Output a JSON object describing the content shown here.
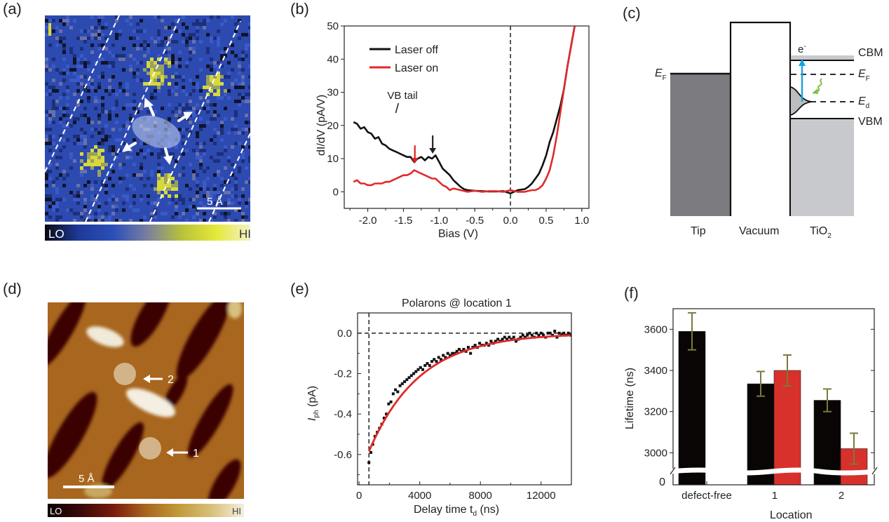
{
  "panels": {
    "a": {
      "label": "(a)",
      "scalebar": "5 Å",
      "colorbar": {
        "lo": "LO",
        "hi": "HI",
        "stops": [
          "#0a0a14",
          "#1e3a9a",
          "#2b4fb8",
          "#7a7fa0",
          "#b8c23a",
          "#e6e83a",
          "#f3f2c8"
        ]
      }
    },
    "b": {
      "label": "(b)"
    },
    "c": {
      "label": "(c)",
      "tip_label": "Tip",
      "vacuum_label": "Vacuum",
      "tio2_label": "TiO",
      "tio2_sub": "2",
      "ef_tip": "E",
      "ef_tip_sub": "F",
      "cbm": "CBM",
      "ef": "E",
      "ef_sub": "F",
      "ed": "E",
      "ed_sub": "d",
      "vbm": "VBM",
      "electron": "e",
      "electron_sup": "-",
      "colors": {
        "tip": "#7c7c80",
        "tio2": "#c8c9cc",
        "excitation_arrow": "#1aa3e0",
        "relaxation_arrow": "#7cc242"
      }
    },
    "d": {
      "label": "(d)",
      "scalebar": "5 Å",
      "marker_1": "1",
      "marker_2": "2",
      "colorbar": {
        "lo": "LO",
        "hi": "HI",
        "stops": [
          "#0a0000",
          "#3a0808",
          "#7a1a0c",
          "#a8661e",
          "#c29a3a",
          "#d8c07a",
          "#f4efe0"
        ]
      }
    },
    "e": {
      "label": "(e)"
    },
    "f": {
      "label": "(f)"
    }
  },
  "chart_data": [
    {
      "panel": "b",
      "type": "line",
      "title": "",
      "xlabel": "Bias (V)",
      "ylabel": "dI/dV (pA/V)",
      "xlim": [
        -2.33,
        1.1
      ],
      "ylim": [
        -5,
        50
      ],
      "xticks": [
        -2.0,
        -1.5,
        -1.0,
        -0.5,
        0.0,
        0.5,
        1.0
      ],
      "xtick_labels": [
        "-2.0",
        "-1.5",
        "-1.0",
        "-0.5",
        "0.0",
        "0.5",
        "1.0"
      ],
      "yticks": [
        0,
        10,
        20,
        30,
        40,
        50
      ],
      "ytick_labels": [
        "0",
        "10",
        "20",
        "30",
        "40",
        "50"
      ],
      "legend": {
        "placement": "top-left",
        "entries": [
          "Laser off",
          "Laser on"
        ]
      },
      "reference_lines": [
        {
          "axis": "x",
          "value": 0.0,
          "style": "dashed"
        }
      ],
      "annotations": [
        {
          "text": "VB tail",
          "x": -1.55,
          "y": 28
        },
        {
          "type": "arrow",
          "color": "#e02020",
          "x": -1.34,
          "y_from": 14,
          "y_to": 8.5
        },
        {
          "type": "arrow",
          "color": "#222222",
          "x": -1.09,
          "y_from": 17,
          "y_to": 11.5
        }
      ],
      "series": [
        {
          "name": "Laser off",
          "color": "#111111",
          "x": [
            -2.2,
            -2.15,
            -2.1,
            -2.05,
            -2.0,
            -1.95,
            -1.9,
            -1.85,
            -1.8,
            -1.75,
            -1.7,
            -1.65,
            -1.6,
            -1.55,
            -1.5,
            -1.45,
            -1.4,
            -1.35,
            -1.3,
            -1.25,
            -1.2,
            -1.15,
            -1.1,
            -1.05,
            -1.0,
            -0.95,
            -0.9,
            -0.85,
            -0.8,
            -0.75,
            -0.7,
            -0.65,
            -0.6,
            -0.5,
            -0.4,
            -0.3,
            -0.2,
            -0.1,
            0.0,
            0.1,
            0.2,
            0.25,
            0.3,
            0.35,
            0.4,
            0.45,
            0.5,
            0.55,
            0.6,
            0.65,
            0.7,
            0.75,
            0.8,
            0.85,
            0.9
          ],
          "y": [
            21,
            20.5,
            19,
            19.5,
            18,
            17.5,
            16,
            16.5,
            14.5,
            14,
            13,
            12.5,
            12,
            11.5,
            11,
            10.5,
            10.5,
            9,
            10,
            10.5,
            9.5,
            10.5,
            10,
            11,
            9,
            7,
            6,
            5,
            3.5,
            2.5,
            1.5,
            0.8,
            0.5,
            0.3,
            0.2,
            0.1,
            0.1,
            0.2,
            -0.5,
            0.5,
            0.8,
            1.5,
            2.5,
            4,
            5.5,
            8,
            11,
            15,
            18,
            22,
            26,
            31,
            38,
            44,
            50
          ]
        },
        {
          "name": "Laser on",
          "color": "#e02a2a",
          "x": [
            -2.2,
            -2.15,
            -2.1,
            -2.05,
            -2.0,
            -1.95,
            -1.9,
            -1.85,
            -1.8,
            -1.75,
            -1.7,
            -1.65,
            -1.6,
            -1.55,
            -1.5,
            -1.45,
            -1.4,
            -1.35,
            -1.3,
            -1.25,
            -1.2,
            -1.15,
            -1.1,
            -1.05,
            -1.0,
            -0.95,
            -0.9,
            -0.85,
            -0.8,
            -0.7,
            -0.6,
            -0.5,
            -0.4,
            -0.3,
            -0.2,
            -0.1,
            0.0,
            0.1,
            0.2,
            0.3,
            0.35,
            0.4,
            0.45,
            0.5,
            0.55,
            0.6,
            0.65,
            0.7,
            0.75,
            0.8,
            0.85,
            0.9
          ],
          "y": [
            3,
            3.5,
            2.5,
            2.5,
            2,
            2,
            2.5,
            2.5,
            2.5,
            3,
            3,
            3.5,
            4,
            4.5,
            5,
            5,
            5.5,
            6.5,
            6,
            5.5,
            5,
            4.5,
            4,
            4,
            3,
            2,
            1.5,
            0.5,
            1,
            0.5,
            0,
            0.3,
            0,
            0.2,
            0.2,
            0,
            0.5,
            0,
            0,
            0.5,
            0.5,
            1,
            2,
            4,
            6.5,
            11,
            17,
            24,
            31,
            38,
            44,
            50
          ]
        }
      ]
    },
    {
      "panel": "e",
      "type": "scatter",
      "title": "Polarons @ location 1",
      "xlabel": "Delay time t",
      "xlabel_sub": "d",
      "xlabel_unit": " (ns)",
      "ylabel": "I",
      "ylabel_sub": "ph",
      "ylabel_unit": " (pA)",
      "xlim": [
        -100,
        14000
      ],
      "ylim": [
        -0.75,
        0.1
      ],
      "xticks": [
        0,
        4000,
        8000,
        12000
      ],
      "xtick_labels": [
        "0",
        "4000",
        "8000",
        "12000"
      ],
      "yticks": [
        0.0,
        -0.2,
        -0.4,
        -0.6
      ],
      "ytick_labels": [
        "0.0",
        "-0.2",
        "-0.4",
        "-0.6"
      ],
      "reference_lines": [
        {
          "axis": "y",
          "value": 0.0,
          "style": "dashed"
        },
        {
          "axis": "x",
          "value": 650,
          "style": "dashed"
        }
      ],
      "fit": {
        "name": "exponential fit",
        "color": "#e02a2a",
        "t0": 650,
        "amplitude": -0.585,
        "tau_ns": 3330
      },
      "series": [
        {
          "name": "data",
          "color": "#111111",
          "x": [
            650,
            780,
            900,
            1050,
            1200,
            1350,
            1500,
            1650,
            1800,
            1950,
            2100,
            2250,
            2400,
            2550,
            2700,
            2850,
            3000,
            3150,
            3300,
            3450,
            3600,
            3750,
            3900,
            4050,
            4200,
            4350,
            4500,
            4650,
            4800,
            4950,
            5100,
            5250,
            5400,
            5550,
            5700,
            5850,
            6000,
            6150,
            6300,
            6450,
            6600,
            6750,
            6900,
            7050,
            7200,
            7350,
            7500,
            7650,
            7800,
            7950,
            8100,
            8250,
            8400,
            8550,
            8700,
            8850,
            9000,
            9150,
            9300,
            9450,
            9600,
            9750,
            9900,
            10050,
            10200,
            10350,
            10500,
            10650,
            10800,
            10950,
            11100,
            11250,
            11400,
            11550,
            11700,
            11850,
            12000,
            12150,
            12300,
            12450,
            12600,
            12750,
            12900,
            13050,
            13200,
            13350,
            13500,
            13650,
            13800,
            13950
          ],
          "y": [
            -0.64,
            -0.59,
            -0.55,
            -0.51,
            -0.49,
            -0.47,
            -0.45,
            -0.42,
            -0.4,
            -0.35,
            -0.34,
            -0.3,
            -0.28,
            -0.29,
            -0.26,
            -0.25,
            -0.24,
            -0.23,
            -0.22,
            -0.21,
            -0.2,
            -0.19,
            -0.18,
            -0.17,
            -0.18,
            -0.16,
            -0.15,
            -0.16,
            -0.14,
            -0.13,
            -0.14,
            -0.12,
            -0.13,
            -0.11,
            -0.12,
            -0.1,
            -0.11,
            -0.1,
            -0.1,
            -0.09,
            -0.08,
            -0.09,
            -0.08,
            -0.09,
            -0.07,
            -0.1,
            -0.07,
            -0.06,
            -0.07,
            -0.05,
            -0.06,
            -0.06,
            -0.05,
            -0.06,
            -0.04,
            -0.05,
            -0.04,
            -0.03,
            -0.04,
            -0.03,
            -0.02,
            -0.03,
            -0.02,
            -0.03,
            -0.02,
            -0.04,
            -0.03,
            -0.02,
            -0.01,
            -0.02,
            -0.01,
            0.0,
            -0.01,
            -0.02,
            0.0,
            -0.01,
            0.0,
            -0.01,
            -0.02,
            0.0,
            0.0,
            -0.01,
            0.01,
            -0.02,
            0.0,
            -0.01,
            0.0,
            -0.01,
            0.0,
            -0.01
          ]
        }
      ]
    },
    {
      "panel": "f",
      "type": "bar",
      "title": "",
      "xlabel": "Location",
      "ylabel": "Lifetime (ns)",
      "ylim": [
        2950,
        3700
      ],
      "axis_break": true,
      "break_low_tick": "0",
      "categories": [
        "defect-free",
        "1",
        "2"
      ],
      "yticks": [
        3000,
        3200,
        3400,
        3600
      ],
      "ytick_labels": [
        "3000",
        "3200",
        "3400",
        "3600"
      ],
      "errorbar_color": "#7a7a3a",
      "series": [
        {
          "name": "Laser off",
          "color": "#0a0505",
          "values": [
            3590,
            3335,
            3255
          ],
          "errors": [
            90,
            60,
            55
          ]
        },
        {
          "name": "Laser on",
          "color": "#d8302a",
          "values": [
            null,
            3400,
            3020
          ],
          "errors": [
            null,
            75,
            75
          ]
        }
      ]
    }
  ]
}
